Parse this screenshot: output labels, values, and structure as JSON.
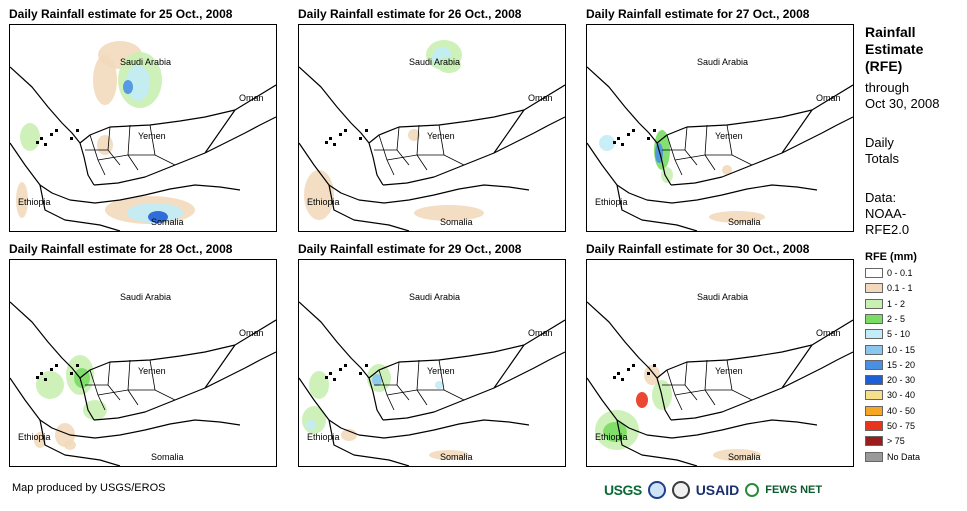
{
  "panels": [
    {
      "title": "Daily Rainfall estimate for 25 Oct., 2008"
    },
    {
      "title": "Daily Rainfall estimate for 26 Oct., 2008"
    },
    {
      "title": "Daily Rainfall estimate for 27 Oct., 2008"
    },
    {
      "title": "Daily Rainfall estimate for 28 Oct., 2008"
    },
    {
      "title": "Daily Rainfall estimate for 29 Oct., 2008"
    },
    {
      "title": "Daily Rainfall estimate for 30 Oct., 2008"
    }
  ],
  "map_labels": {
    "saudi": "Saudi Arabia",
    "oman": "Oman",
    "yemen": "Yemen",
    "ethiopia": "Ethiopia",
    "somalia": "Somalia"
  },
  "sidebar": {
    "title_lines": [
      "Rainfall",
      "Estimate",
      "(RFE)"
    ],
    "through": "through",
    "date": "Oct 30, 2008",
    "daily": "Daily",
    "totals": "Totals",
    "data_label": "Data:",
    "data_source_1": "NOAA-",
    "data_source_2": "RFE2.0"
  },
  "legend": {
    "title": "RFE (mm)",
    "items": [
      {
        "label": "0 - 0.1",
        "color": "#ffffff"
      },
      {
        "label": "0.1 - 1",
        "color": "#f2d9bd"
      },
      {
        "label": "1 - 2",
        "color": "#c9efb3"
      },
      {
        "label": "2 - 5",
        "color": "#79dc63"
      },
      {
        "label": "5 - 10",
        "color": "#c2ecf7"
      },
      {
        "label": "10 - 15",
        "color": "#8ac6ee"
      },
      {
        "label": "15 - 20",
        "color": "#4a90e2"
      },
      {
        "label": "20 - 30",
        "color": "#1f5fd6"
      },
      {
        "label": "30 - 40",
        "color": "#f7df8a"
      },
      {
        "label": "40 - 50",
        "color": "#f5a623"
      },
      {
        "label": "50 - 75",
        "color": "#e8341c"
      },
      {
        "label": "> 75",
        "color": "#9a1c1c"
      },
      {
        "label": "No Data",
        "color": "#999999"
      }
    ]
  },
  "footer": {
    "credit": "Map produced by USGS/EROS",
    "logo_usgs": "USGS",
    "logo_usaid": "USAID",
    "logo_fews": "FEWS NET"
  }
}
